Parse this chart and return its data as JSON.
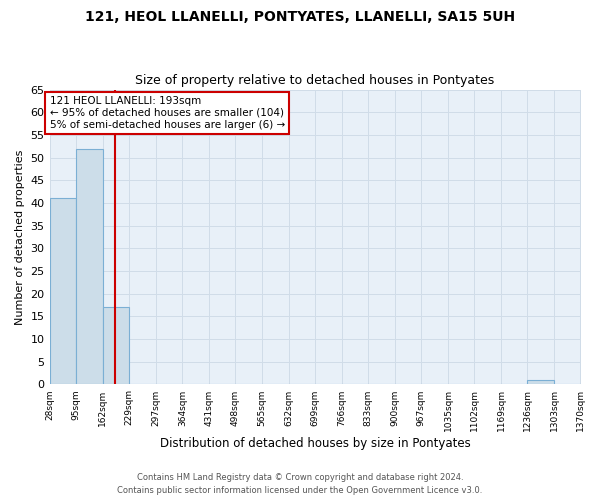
{
  "title1": "121, HEOL LLANELLI, PONTYATES, LLANELLI, SA15 5UH",
  "title2": "Size of property relative to detached houses in Pontyates",
  "xlabel": "Distribution of detached houses by size in Pontyates",
  "ylabel": "Number of detached properties",
  "bin_edges": [
    28,
    95,
    162,
    229,
    297,
    364,
    431,
    498,
    565,
    632,
    699,
    766,
    833,
    900,
    967,
    1035,
    1102,
    1169,
    1236,
    1303,
    1370
  ],
  "bin_labels": [
    "28sqm",
    "95sqm",
    "162sqm",
    "229sqm",
    "297sqm",
    "364sqm",
    "431sqm",
    "498sqm",
    "565sqm",
    "632sqm",
    "699sqm",
    "766sqm",
    "833sqm",
    "900sqm",
    "967sqm",
    "1035sqm",
    "1102sqm",
    "1169sqm",
    "1236sqm",
    "1303sqm",
    "1370sqm"
  ],
  "bar_heights": [
    41,
    52,
    17,
    0,
    0,
    0,
    0,
    0,
    0,
    0,
    0,
    0,
    0,
    0,
    0,
    0,
    0,
    0,
    1,
    0
  ],
  "bar_color": "#ccdde9",
  "bar_edge_color": "#7bafd4",
  "vline_x": 193,
  "vline_color": "#cc0000",
  "ylim": [
    0,
    65
  ],
  "yticks": [
    0,
    5,
    10,
    15,
    20,
    25,
    30,
    35,
    40,
    45,
    50,
    55,
    60,
    65
  ],
  "annotation_text": "121 HEOL LLANELLI: 193sqm\n← 95% of detached houses are smaller (104)\n5% of semi-detached houses are larger (6) →",
  "annotation_box_color": "#ffffff",
  "annotation_box_edgecolor": "#cc0000",
  "footer1": "Contains HM Land Registry data © Crown copyright and database right 2024.",
  "footer2": "Contains public sector information licensed under the Open Government Licence v3.0.",
  "background_color": "#e8f0f8",
  "fig_bg_color": "#ffffff",
  "grid_color": "#d0dce8"
}
